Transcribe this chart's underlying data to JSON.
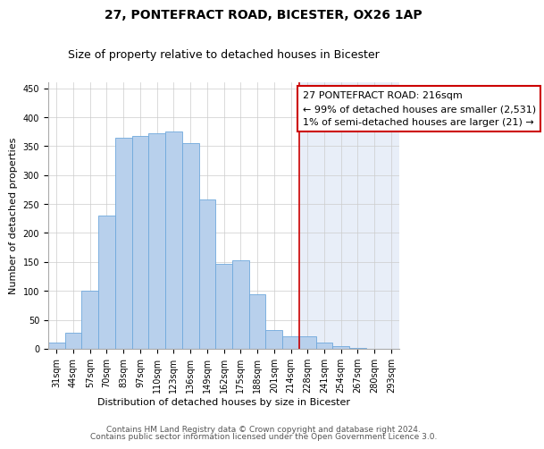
{
  "title": "27, PONTEFRACT ROAD, BICESTER, OX26 1AP",
  "subtitle": "Size of property relative to detached houses in Bicester",
  "xlabel": "Distribution of detached houses by size in Bicester",
  "ylabel": "Number of detached properties",
  "bar_labels": [
    "31sqm",
    "44sqm",
    "57sqm",
    "70sqm",
    "83sqm",
    "97sqm",
    "110sqm",
    "123sqm",
    "136sqm",
    "149sqm",
    "162sqm",
    "175sqm",
    "188sqm",
    "201sqm",
    "214sqm",
    "228sqm",
    "241sqm",
    "254sqm",
    "267sqm",
    "280sqm",
    "293sqm"
  ],
  "bar_heights": [
    10,
    28,
    100,
    230,
    365,
    367,
    373,
    375,
    355,
    258,
    146,
    153,
    94,
    32,
    22,
    21,
    11,
    4,
    1,
    0,
    0
  ],
  "bar_color": "#B8D0EC",
  "bar_edge_color": "#6FA8DC",
  "grid_color": "#CCCCCC",
  "background_color": "#FFFFFF",
  "highlight_background": "#E8EEF8",
  "vline_color": "#CC0000",
  "annotation_text": "27 PONTEFRACT ROAD: 216sqm\n← 99% of detached houses are smaller (2,531)\n1% of semi-detached houses are larger (21) →",
  "annotation_box_color": "#CC0000",
  "annotation_bg": "#FFFFFF",
  "ylim": [
    0,
    460
  ],
  "yticks": [
    0,
    50,
    100,
    150,
    200,
    250,
    300,
    350,
    400,
    450
  ],
  "footnote_line1": "Contains HM Land Registry data © Crown copyright and database right 2024.",
  "footnote_line2": "Contains public sector information licensed under the Open Government Licence 3.0.",
  "title_fontsize": 10,
  "subtitle_fontsize": 9,
  "label_fontsize": 8,
  "tick_fontsize": 7,
  "annotation_fontsize": 8,
  "footnote_fontsize": 6.5
}
